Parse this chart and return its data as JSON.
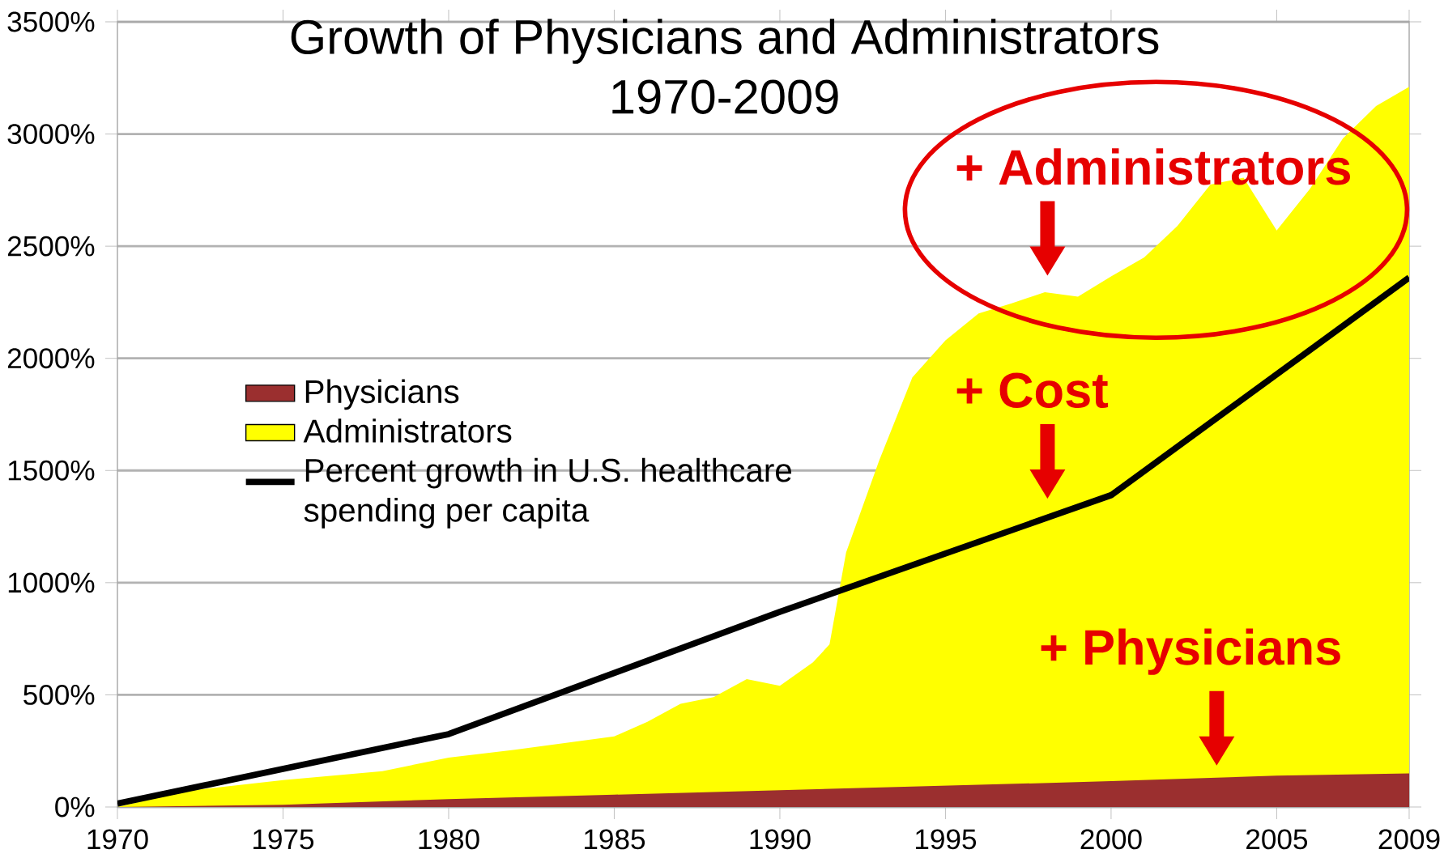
{
  "chart_data": {
    "type": "area",
    "title": "Growth of Physicians and Administrators",
    "subtitle": "1970-2009",
    "series": [
      {
        "name": "Physicians",
        "color": "#9b2f2f",
        "x": [
          1970,
          1975,
          1980,
          1985,
          1990,
          1995,
          2000,
          2003,
          2005,
          2009
        ],
        "values": [
          0,
          10,
          35,
          55,
          75,
          95,
          115,
          130,
          140,
          150
        ]
      },
      {
        "name": "Administrators",
        "color": "#ffff00",
        "x": [
          1970,
          1972,
          1975,
          1978,
          1980,
          1982,
          1984,
          1985,
          1986,
          1987,
          1988,
          1989,
          1990,
          1991,
          1991.5,
          1992,
          1993,
          1994,
          1995,
          1996,
          1997,
          1998,
          1999,
          2000,
          2001,
          2002,
          2003,
          2004,
          2005,
          2006,
          2007,
          2008,
          2009
        ],
        "values": [
          0,
          70,
          120,
          160,
          220,
          255,
          295,
          315,
          380,
          460,
          490,
          570,
          540,
          645,
          725,
          1135,
          1545,
          1915,
          2080,
          2200,
          2245,
          2295,
          2275,
          2365,
          2450,
          2590,
          2775,
          2805,
          2570,
          2755,
          2980,
          3125,
          3210
        ]
      },
      {
        "name": "Percent growth in U.S. healthcare spending per capita",
        "type": "line",
        "color": "#000000",
        "x": [
          1970,
          1980,
          1990,
          2000,
          2009
        ],
        "values": [
          15,
          325,
          870,
          1390,
          2360
        ]
      }
    ],
    "xlim": [
      1970,
      2009
    ],
    "ylim": [
      0,
      3500
    ],
    "xticks": [
      1970,
      1975,
      1980,
      1985,
      1990,
      1995,
      2000,
      2005,
      2009
    ],
    "yticks": [
      {
        "value": 0,
        "label": "0%"
      },
      {
        "value": 500,
        "label": "500%"
      },
      {
        "value": 1000,
        "label": "1000%"
      },
      {
        "value": 1500,
        "label": "1500%"
      },
      {
        "value": 2000,
        "label": "2000%"
      },
      {
        "value": 2500,
        "label": "2500%"
      },
      {
        "value": 3000,
        "label": "3000%"
      },
      {
        "value": 3500,
        "label": "3500%"
      }
    ],
    "grid": "y",
    "legend": "left",
    "annotations": [
      "+ Administrators",
      "+ Cost",
      "+ Physicians"
    ]
  }
}
